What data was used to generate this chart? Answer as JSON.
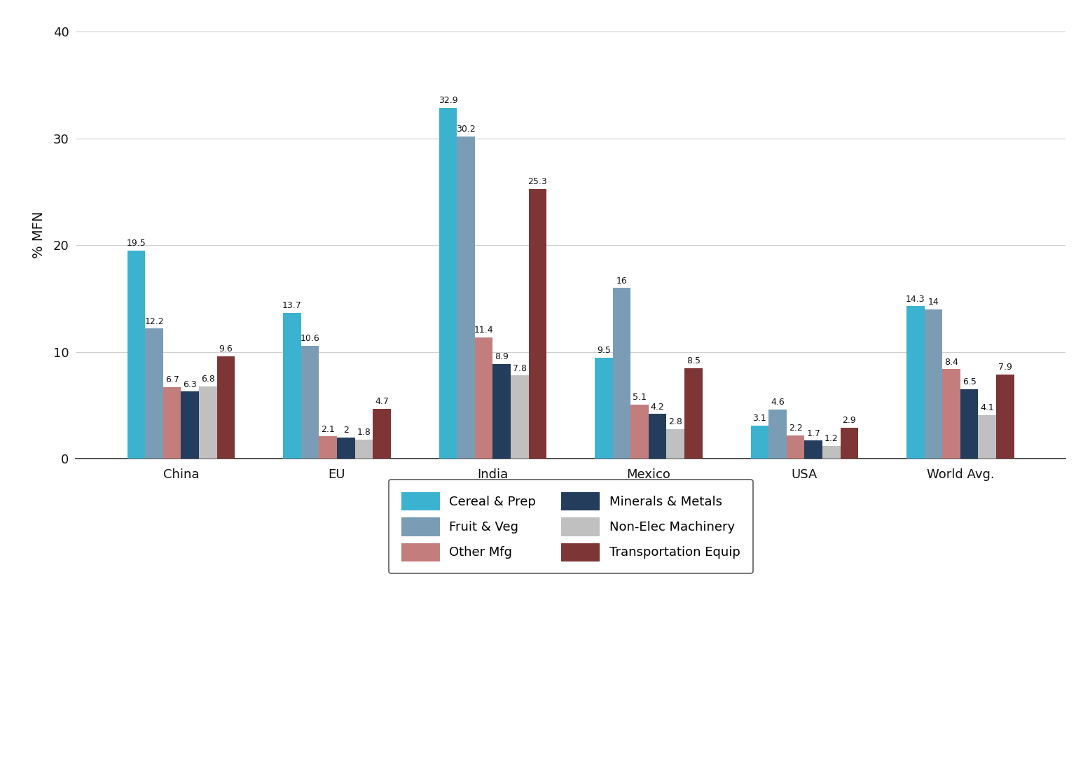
{
  "categories": [
    "China",
    "EU",
    "India",
    "Mexico",
    "USA",
    "World Avg."
  ],
  "series_order": [
    "Cereal & Prep",
    "Fruit & Veg",
    "Other Mfg",
    "Minerals & Metals",
    "Non-Elec Machinery",
    "Transportation Equip"
  ],
  "series": {
    "Cereal & Prep": [
      19.5,
      13.7,
      32.9,
      9.5,
      3.1,
      14.3
    ],
    "Fruit & Veg": [
      12.2,
      10.6,
      30.2,
      16.0,
      4.6,
      14.0
    ],
    "Other Mfg": [
      6.7,
      2.1,
      11.4,
      5.1,
      2.2,
      8.4
    ],
    "Minerals & Metals": [
      6.3,
      2.0,
      8.9,
      4.2,
      1.7,
      6.5
    ],
    "Non-Elec Machinery": [
      6.8,
      1.8,
      7.8,
      2.8,
      1.2,
      4.1
    ],
    "Transportation Equip": [
      9.6,
      4.7,
      25.3,
      8.5,
      2.9,
      7.9
    ]
  },
  "colors": {
    "Cereal & Prep": "#3bb3d0",
    "Fruit & Veg": "#7a9db5",
    "Other Mfg": "#c47d7d",
    "Minerals & Metals": "#243d5c",
    "Non-Elec Machinery": "#c0c0c0",
    "Transportation Equip": "#7e3535"
  },
  "bar_labels": {
    "Cereal & Prep": [
      "19.5",
      "13.7",
      "32.9",
      "9.5",
      "3.1",
      "14.3"
    ],
    "Fruit & Veg": [
      "12.2",
      "10.6",
      "30.2",
      "16",
      "4.6",
      "14"
    ],
    "Other Mfg": [
      "6.7",
      "2.1",
      "11.4",
      "5.1",
      "2.2",
      "8.4"
    ],
    "Minerals & Metals": [
      "6.3",
      "2",
      "8.9",
      "4.2",
      "1.7",
      "6.5"
    ],
    "Non-Elec Machinery": [
      "6.8",
      "1.8",
      "7.8",
      "2.8",
      "1.2",
      "4.1"
    ],
    "Transportation Equip": [
      "9.6",
      "4.7",
      "25.3",
      "8.5",
      "2.9",
      "7.9"
    ]
  },
  "ylabel": "% MFN",
  "ylim": [
    0,
    42
  ],
  "yticks": [
    0,
    10,
    20,
    30,
    40
  ],
  "background_color": "#ffffff",
  "grid_color": "#d0d0d0",
  "bar_width": 0.115,
  "label_fontsize": 9.0,
  "axis_label_fontsize": 14,
  "tick_fontsize": 13,
  "legend_ncol": 2,
  "legend_order": [
    "Cereal & Prep",
    "Fruit & Veg",
    "Other Mfg",
    "Minerals & Metals",
    "Non-Elec Machinery",
    "Transportation Equip"
  ]
}
